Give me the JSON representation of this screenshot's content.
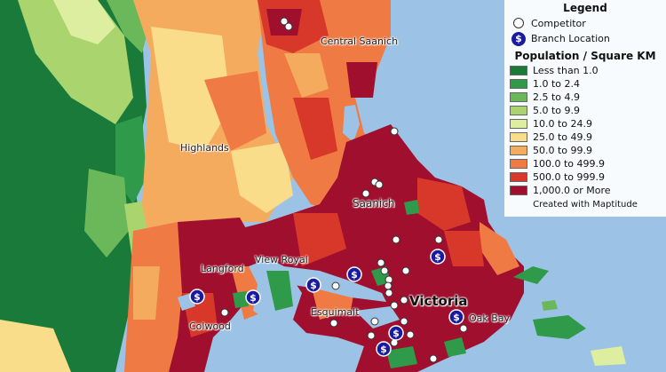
{
  "legend": {
    "title": "Legend",
    "competitor_label": "Competitor",
    "branch_label": "Branch Location",
    "density_title": "Population / Square KM",
    "classes": [
      {
        "label": "Less than 1.0",
        "color": "#1a7a3a"
      },
      {
        "label": "1.0 to 2.4",
        "color": "#2f9a4a"
      },
      {
        "label": "2.5 to 4.9",
        "color": "#6ab85a"
      },
      {
        "label": "5.0 to 9.9",
        "color": "#a9d46e"
      },
      {
        "label": "10.0 to 24.9",
        "color": "#ddeea0"
      },
      {
        "label": "25.0 to 49.9",
        "color": "#f9dd8a"
      },
      {
        "label": "50.0 to 99.9",
        "color": "#f5ab5e"
      },
      {
        "label": "100.0 to 499.9",
        "color": "#ef7a44"
      },
      {
        "label": "500.0 to 999.9",
        "color": "#d8382a"
      },
      {
        "label": "1,000.0 or More",
        "color": "#a0102e"
      }
    ],
    "credit": "Created with Maptitude"
  },
  "places": {
    "central_saanich": "Central Saanich",
    "highlands": "Highlands",
    "saanich": "Saanich",
    "view_royal": "View Royal",
    "langford": "Langford",
    "esquimalt": "Esquimalt",
    "victoria": "Victoria",
    "oak_bay": "Oak Bay",
    "colwood": "Colwood"
  },
  "branch_symbol": "$",
  "colors": {
    "water": "#9cc3e6",
    "branch": "#1a1aa0",
    "competitor": "#ffffff"
  }
}
